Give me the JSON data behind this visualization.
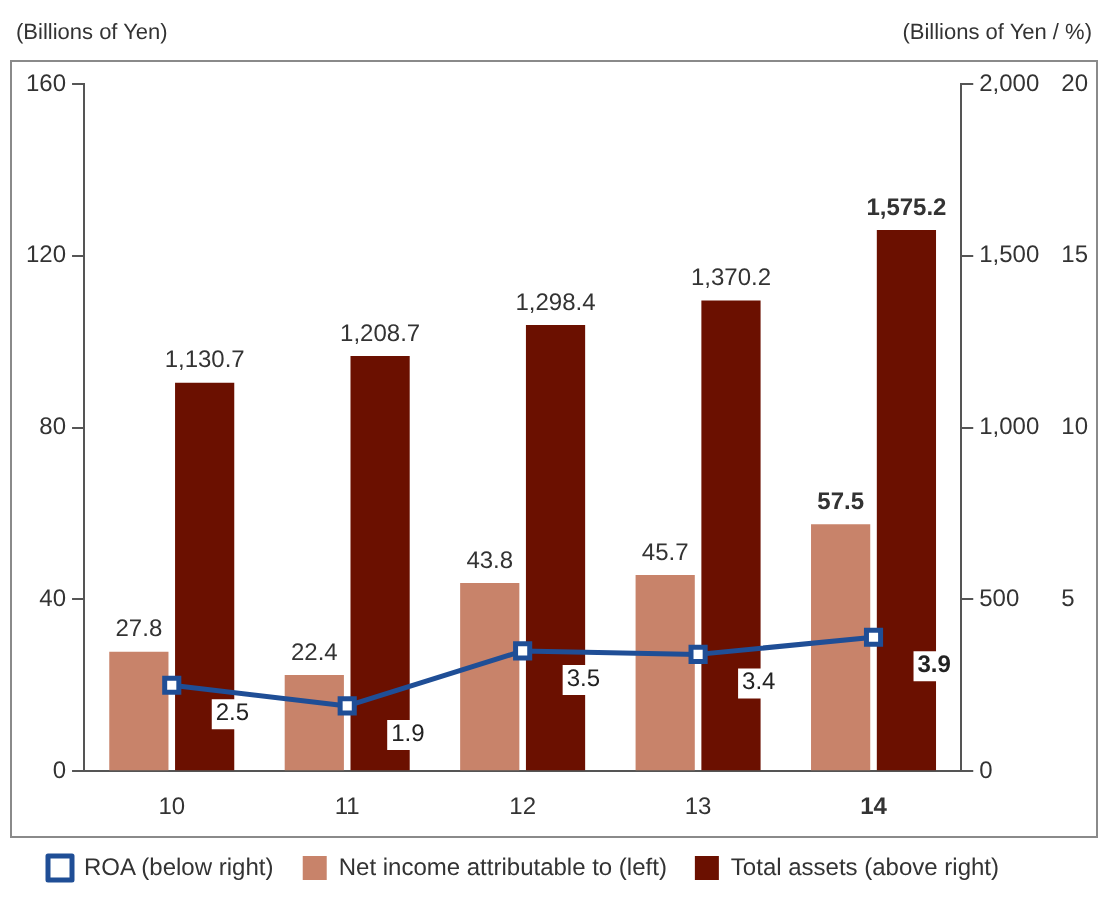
{
  "chart_data": {
    "type": "bar",
    "ylabel": "(Billions of Yen)",
    "y2label": "(Billions of Yen / %)",
    "categories": [
      "10",
      "11",
      "12",
      "13",
      "14"
    ],
    "series": [
      {
        "name": "Net income attributable to (left)",
        "color": "#c8836a",
        "values": [
          27.8,
          22.4,
          43.8,
          45.7,
          57.5
        ],
        "value_labels": [
          "27.8",
          "22.4",
          "43.8",
          "45.7",
          "57.5"
        ]
      },
      {
        "name": "Total assets (above right)",
        "color": "#6b1000",
        "axis": "y2",
        "values": [
          1130.7,
          1208.7,
          1298.4,
          1370.2,
          1575.2
        ],
        "value_labels": [
          "1,130.7",
          "1,208.7",
          "1,298.4",
          "1,370.2",
          "1,575.2"
        ]
      },
      {
        "name": "ROA (below right)",
        "type": "line",
        "color": "#1f4e96",
        "axis": "y3",
        "marker": "square",
        "values": [
          2.5,
          1.9,
          3.5,
          3.4,
          3.9
        ],
        "value_labels": [
          "2.5",
          "1.9",
          "3.5",
          "3.4",
          "3.9"
        ]
      }
    ],
    "ylim": [
      0,
      160
    ],
    "yticks": [
      0,
      40,
      80,
      120,
      160
    ],
    "y2lim": [
      0,
      2000
    ],
    "y2ticks": [
      0,
      500,
      {
        "value": 1000,
        "label": "1,000"
      },
      {
        "value": 1500,
        "label": "1,500"
      },
      {
        "value": 2000,
        "label": "2,000"
      }
    ],
    "y3lim": [
      0,
      20
    ],
    "y3ticks": [
      5,
      10,
      15,
      20
    ],
    "grid": false,
    "legend": "bottom"
  }
}
